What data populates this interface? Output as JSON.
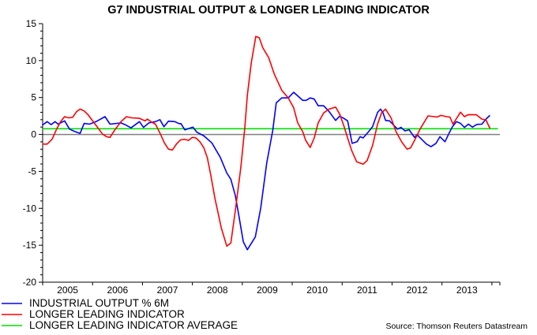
{
  "chart_data": {
    "type": "line",
    "title": "G7 INDUSTRIAL OUTPUT & LONGER LEADING INDICATOR",
    "xlabel": "",
    "ylabel": "",
    "xlim": [
      2005.0,
      2014.16
    ],
    "ylim": [
      -20,
      15
    ],
    "y_ticks": [
      15,
      10,
      5,
      0,
      -5,
      -10,
      -15,
      -20
    ],
    "y_tick_labels": [
      "15",
      "10",
      "5",
      "0",
      "-5",
      "-10",
      "-15",
      "-20"
    ],
    "x_tick_labels": [
      "2005",
      "2006",
      "2007",
      "2008",
      "2009",
      "2010",
      "2011",
      "2012",
      "2013"
    ],
    "grid": false,
    "legend_position": "bottom-left",
    "source": "Source: Thomson Reuters Datastream",
    "zero_line_color": "#808080",
    "series": [
      {
        "name": "INDUSTRIAL OUTPUT % 6M",
        "color": "#0000ff",
        "points": [
          [
            2004.99,
            1.23
          ],
          [
            2005.09,
            1.74
          ],
          [
            2005.17,
            1.33
          ],
          [
            2005.25,
            1.74
          ],
          [
            2005.31,
            1.39
          ],
          [
            2005.44,
            1.84
          ],
          [
            2005.54,
            0.72
          ],
          [
            2005.65,
            0.38
          ],
          [
            2005.75,
            0.14
          ],
          [
            2005.83,
            1.49
          ],
          [
            2005.94,
            1.39
          ],
          [
            2006.07,
            1.74
          ],
          [
            2006.25,
            2.41
          ],
          [
            2006.35,
            1.39
          ],
          [
            2006.57,
            1.57
          ],
          [
            2006.65,
            1.33
          ],
          [
            2006.77,
            0.89
          ],
          [
            2006.94,
            1.74
          ],
          [
            2007.02,
            0.96
          ],
          [
            2007.13,
            1.57
          ],
          [
            2007.26,
            1.74
          ],
          [
            2007.35,
            2.0
          ],
          [
            2007.43,
            1.05
          ],
          [
            2007.52,
            1.8
          ],
          [
            2007.65,
            1.74
          ],
          [
            2007.73,
            1.47
          ],
          [
            2007.77,
            1.47
          ],
          [
            2007.85,
            0.62
          ],
          [
            2008.01,
            0.99
          ],
          [
            2008.09,
            0.31
          ],
          [
            2008.23,
            -0.19
          ],
          [
            2008.39,
            -1.15
          ],
          [
            2008.56,
            -3.11
          ],
          [
            2008.69,
            -5.22
          ],
          [
            2008.77,
            -6.06
          ],
          [
            2008.86,
            -8.27
          ],
          [
            2008.94,
            -11.32
          ],
          [
            2009.02,
            -14.54
          ],
          [
            2009.1,
            -15.6
          ],
          [
            2009.26,
            -13.87
          ],
          [
            2009.37,
            -9.93
          ],
          [
            2009.49,
            -3.83
          ],
          [
            2009.61,
            0.55
          ],
          [
            2009.68,
            4.28
          ],
          [
            2009.79,
            4.95
          ],
          [
            2009.92,
            4.95
          ],
          [
            2010.03,
            5.71
          ],
          [
            2010.11,
            5.23
          ],
          [
            2010.21,
            4.62
          ],
          [
            2010.28,
            4.62
          ],
          [
            2010.36,
            4.95
          ],
          [
            2010.44,
            4.79
          ],
          [
            2010.52,
            3.88
          ],
          [
            2010.63,
            3.88
          ],
          [
            2010.74,
            3.09
          ],
          [
            2010.87,
            1.9
          ],
          [
            2010.95,
            2.48
          ],
          [
            2011.03,
            2.18
          ],
          [
            2011.11,
            1.84
          ],
          [
            2011.2,
            -1.21
          ],
          [
            2011.3,
            -0.98
          ],
          [
            2011.36,
            -0.3
          ],
          [
            2011.42,
            -0.47
          ],
          [
            2011.53,
            0.38
          ],
          [
            2011.61,
            1.06
          ],
          [
            2011.71,
            2.99
          ],
          [
            2011.77,
            3.43
          ],
          [
            2011.82,
            2.92
          ],
          [
            2011.87,
            1.9
          ],
          [
            2011.95,
            1.84
          ],
          [
            2012.11,
            0.72
          ],
          [
            2012.18,
            0.96
          ],
          [
            2012.26,
            0.48
          ],
          [
            2012.34,
            0.65
          ],
          [
            2012.45,
            -0.4
          ],
          [
            2012.5,
            -0.06
          ],
          [
            2012.69,
            -1.31
          ],
          [
            2012.78,
            -1.66
          ],
          [
            2012.88,
            -1.21
          ],
          [
            2012.96,
            -0.3
          ],
          [
            2013.06,
            -0.98
          ],
          [
            2013.14,
            0.14
          ],
          [
            2013.21,
            1.06
          ],
          [
            2013.29,
            1.74
          ],
          [
            2013.37,
            1.5
          ],
          [
            2013.45,
            0.96
          ],
          [
            2013.53,
            1.39
          ],
          [
            2013.61,
            0.99
          ],
          [
            2013.7,
            1.36
          ],
          [
            2013.8,
            1.39
          ],
          [
            2013.88,
            2.08
          ],
          [
            2013.96,
            2.58
          ]
        ]
      },
      {
        "name": "LONGER LEADING INDICATOR",
        "color": "#ff0000",
        "points": [
          [
            2004.99,
            -1.31
          ],
          [
            2005.09,
            -1.31
          ],
          [
            2005.19,
            -0.64
          ],
          [
            2005.28,
            0.72
          ],
          [
            2005.36,
            1.74
          ],
          [
            2005.44,
            2.41
          ],
          [
            2005.52,
            2.25
          ],
          [
            2005.6,
            2.31
          ],
          [
            2005.68,
            3.09
          ],
          [
            2005.75,
            3.43
          ],
          [
            2005.83,
            3.19
          ],
          [
            2005.91,
            2.66
          ],
          [
            2006.07,
            1.23
          ],
          [
            2006.2,
            0.04
          ],
          [
            2006.28,
            -0.3
          ],
          [
            2006.35,
            -0.4
          ],
          [
            2006.44,
            0.55
          ],
          [
            2006.57,
            1.74
          ],
          [
            2006.68,
            2.41
          ],
          [
            2006.78,
            2.25
          ],
          [
            2006.94,
            2.18
          ],
          [
            2007.05,
            1.84
          ],
          [
            2007.1,
            2.08
          ],
          [
            2007.18,
            1.67
          ],
          [
            2007.26,
            1.39
          ],
          [
            2007.36,
            0.04
          ],
          [
            2007.44,
            -1.15
          ],
          [
            2007.52,
            -1.99
          ],
          [
            2007.6,
            -2.1
          ],
          [
            2007.68,
            -1.31
          ],
          [
            2007.76,
            -0.74
          ],
          [
            2007.84,
            -0.64
          ],
          [
            2007.92,
            -0.8
          ],
          [
            2008.0,
            -0.4
          ],
          [
            2008.07,
            -0.47
          ],
          [
            2008.15,
            -0.98
          ],
          [
            2008.23,
            -1.82
          ],
          [
            2008.3,
            -3.18
          ],
          [
            2008.37,
            -5.55
          ],
          [
            2008.45,
            -8.61
          ],
          [
            2008.58,
            -12.68
          ],
          [
            2008.69,
            -15.12
          ],
          [
            2008.77,
            -14.71
          ],
          [
            2008.86,
            -10.31
          ],
          [
            2008.97,
            -4.52
          ],
          [
            2009.05,
            0.89
          ],
          [
            2009.1,
            5.3
          ],
          [
            2009.18,
            9.71
          ],
          [
            2009.27,
            13.27
          ],
          [
            2009.34,
            13.09
          ],
          [
            2009.41,
            11.74
          ],
          [
            2009.53,
            10.39
          ],
          [
            2009.64,
            8.18
          ],
          [
            2009.79,
            5.97
          ],
          [
            2009.92,
            4.95
          ],
          [
            2010.03,
            3.6
          ],
          [
            2010.11,
            1.57
          ],
          [
            2010.21,
            0.38
          ],
          [
            2010.27,
            -0.8
          ],
          [
            2010.36,
            -1.76
          ],
          [
            2010.44,
            -0.47
          ],
          [
            2010.52,
            1.57
          ],
          [
            2010.63,
            2.92
          ],
          [
            2010.74,
            3.43
          ],
          [
            2010.87,
            3.7
          ],
          [
            2010.95,
            2.76
          ],
          [
            2011.03,
            1.23
          ],
          [
            2011.11,
            -0.47
          ],
          [
            2011.19,
            -2.17
          ],
          [
            2011.29,
            -3.69
          ],
          [
            2011.42,
            -4.03
          ],
          [
            2011.5,
            -3.52
          ],
          [
            2011.61,
            -1.49
          ],
          [
            2011.71,
            1.39
          ],
          [
            2011.79,
            2.92
          ],
          [
            2011.87,
            3.43
          ],
          [
            2011.98,
            2.25
          ],
          [
            2012.08,
            0.38
          ],
          [
            2012.19,
            -0.98
          ],
          [
            2012.3,
            -1.99
          ],
          [
            2012.37,
            -1.82
          ],
          [
            2012.45,
            -0.8
          ],
          [
            2012.56,
            0.72
          ],
          [
            2012.72,
            2.51
          ],
          [
            2012.9,
            2.35
          ],
          [
            2012.98,
            2.58
          ],
          [
            2013.09,
            2.41
          ],
          [
            2013.16,
            2.35
          ],
          [
            2013.22,
            1.39
          ],
          [
            2013.3,
            2.25
          ],
          [
            2013.37,
            3.02
          ],
          [
            2013.45,
            2.41
          ],
          [
            2013.53,
            2.69
          ],
          [
            2013.69,
            2.66
          ],
          [
            2013.8,
            2.08
          ],
          [
            2013.88,
            1.97
          ],
          [
            2013.96,
            0.82
          ]
        ]
      },
      {
        "name": "LONGER LEADING INDICATOR AVERAGE",
        "color": "#00e000",
        "points": [
          [
            2005.0,
            0.78
          ],
          [
            2014.12,
            0.78
          ]
        ]
      }
    ]
  }
}
